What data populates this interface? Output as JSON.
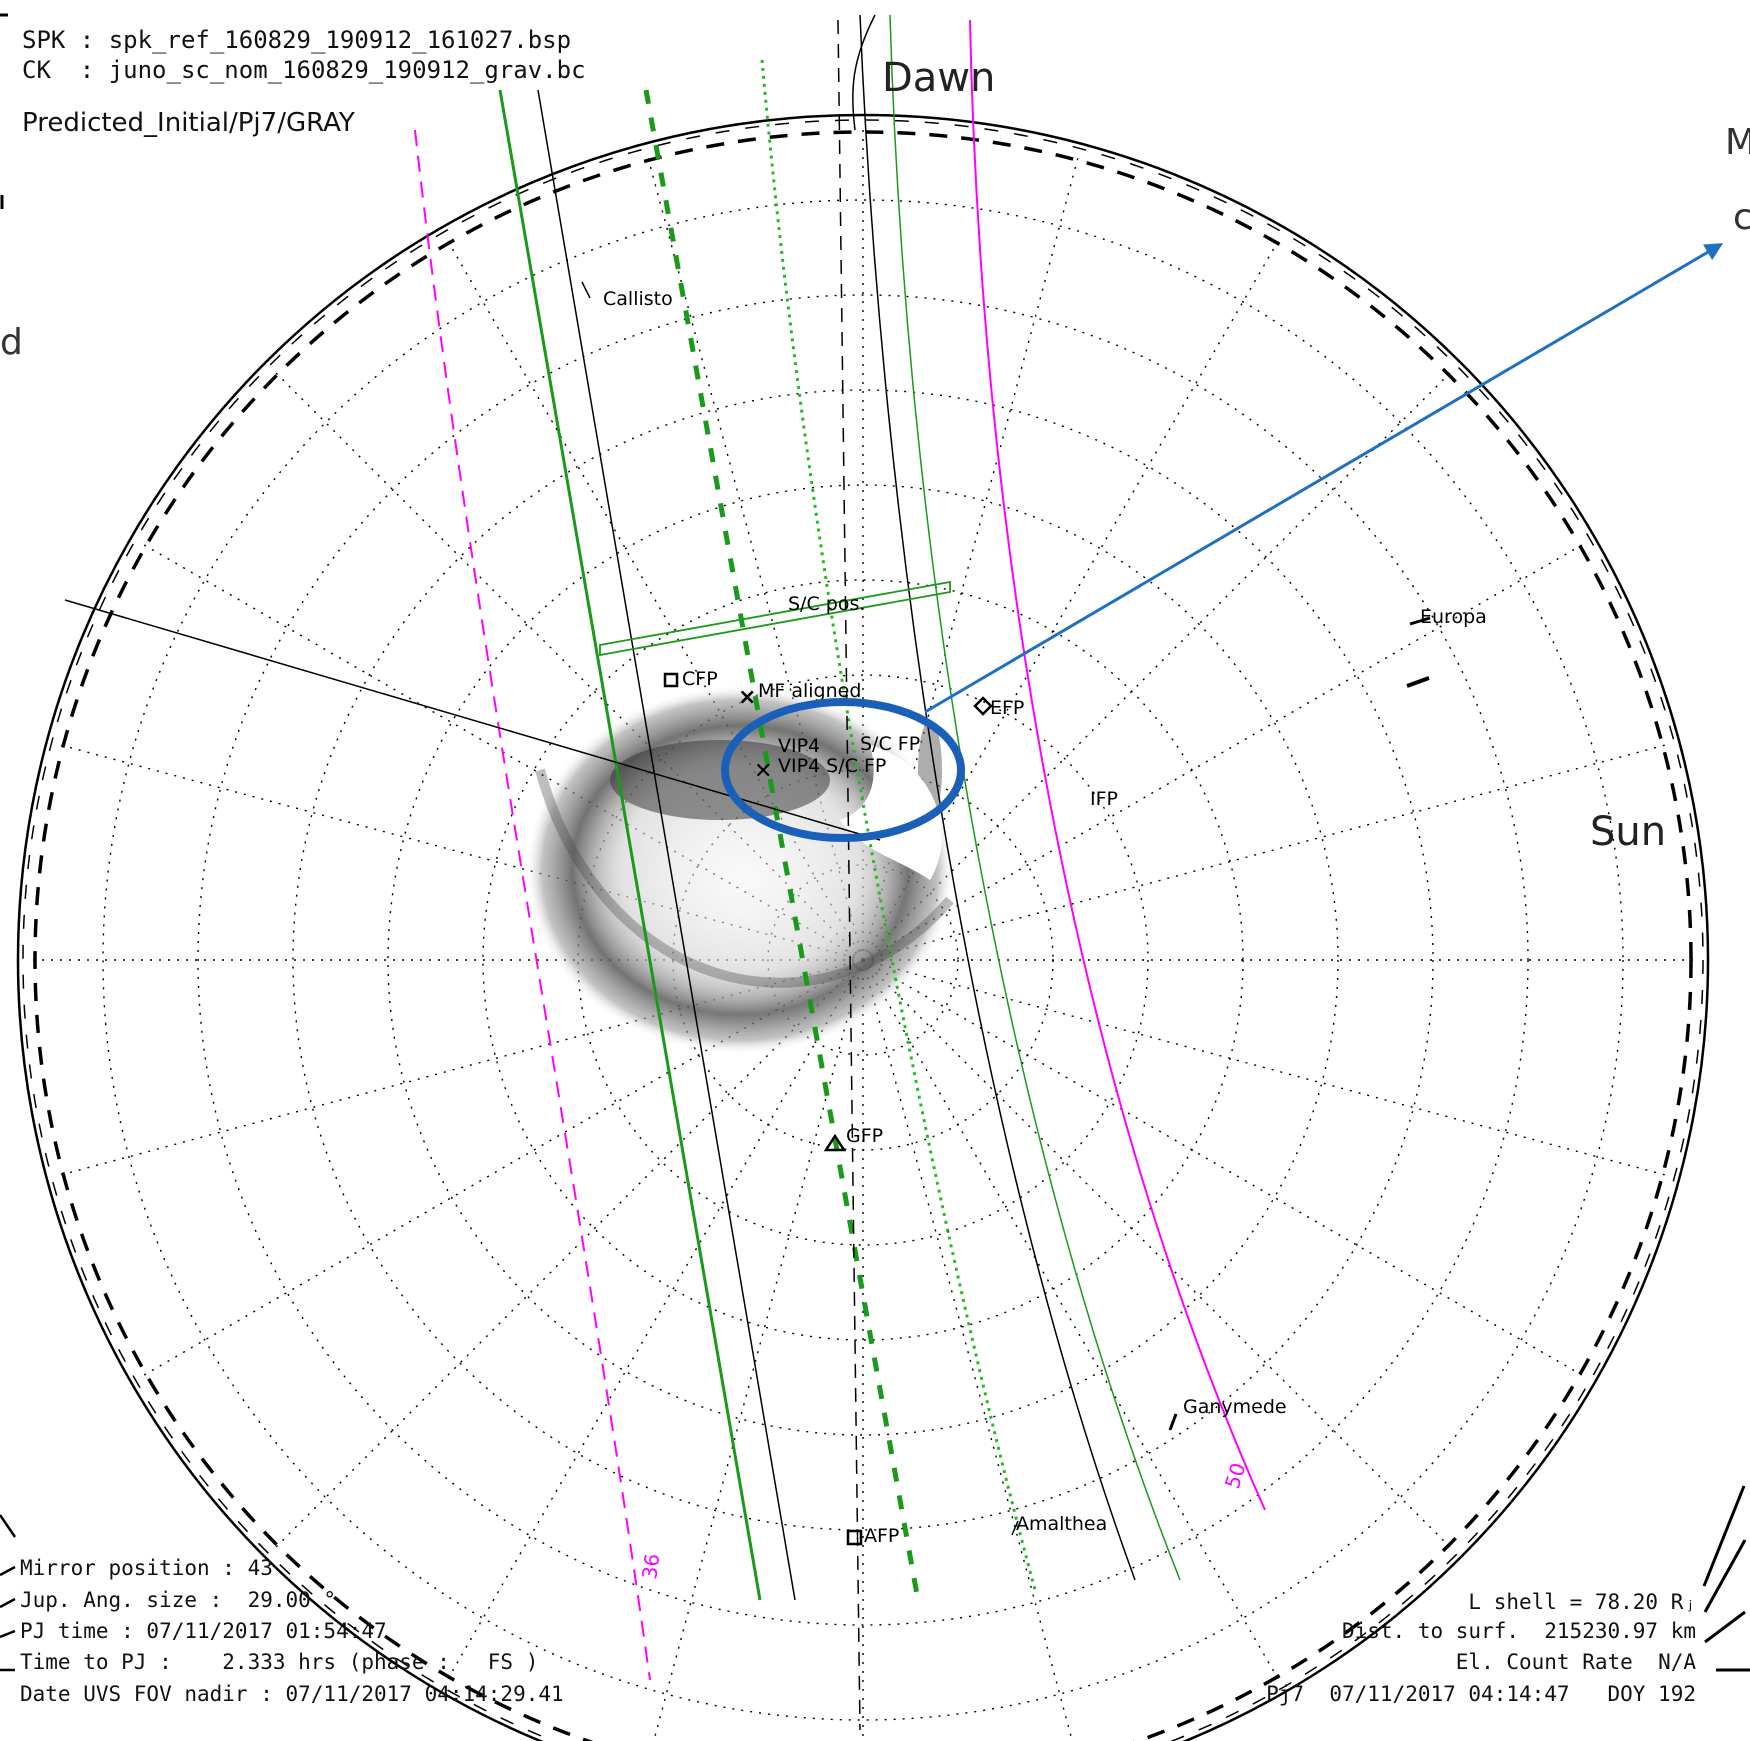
{
  "header": {
    "spk": "SPK : spk_ref_160829_190912_161027.bsp",
    "ck": "CK  : juno_sc_nom_160829_190912_grav.bc",
    "mode": "Predicted_Initial/Pj7/GRAY"
  },
  "orientation": {
    "dawn": "Dawn",
    "sun": "Sun"
  },
  "map_labels": {
    "callisto": "Callisto",
    "europa": "Europa",
    "ganymede": "Ganymede",
    "amalthea": "Amalthea",
    "sc_pos": "S/C pos.",
    "cfp": "CFP",
    "mf_aligned": "MF aligned",
    "efp": "EFP",
    "ifp": "IFP",
    "gfp": "GFP",
    "afp": "AFP",
    "vip4_a": "VIP4",
    "vip4_b": "VIP4 S/C FP",
    "sc_fp": "S/C FP"
  },
  "contour_labels": {
    "left": "36",
    "right": "50"
  },
  "footer_left": {
    "mirror": "Mirror position : 43",
    "ang_size": "Jup. Ang. size :  29.00 °",
    "pj_time": "PJ time : 07/11/2017 01:54:47",
    "time_to_pj": "Time to PJ :    2.333 hrs (phase :   FS )",
    "date_fov": "Date UVS FOV nadir : 07/11/2017 04:14:29.41"
  },
  "footer_right": {
    "l_shell": "L shell = 78.20 Rⱼ",
    "dist": "Dist. to surf.  215230.97 km",
    "count_rate": "El. Count Rate  N/A",
    "pj_line": "Pj7  07/11/2017 04:14:47   DOY 192"
  },
  "annotations": {
    "top_right": "M",
    "top_right_2": "c",
    "left_edge": "d"
  },
  "colors": {
    "magenta": "#ff00ff",
    "green": "#1a9a1a",
    "bright_green": "#22bb22",
    "arrow_blue": "#1f6fc4",
    "ellipse_blue": "#1a5fb8",
    "black": "#000000"
  }
}
